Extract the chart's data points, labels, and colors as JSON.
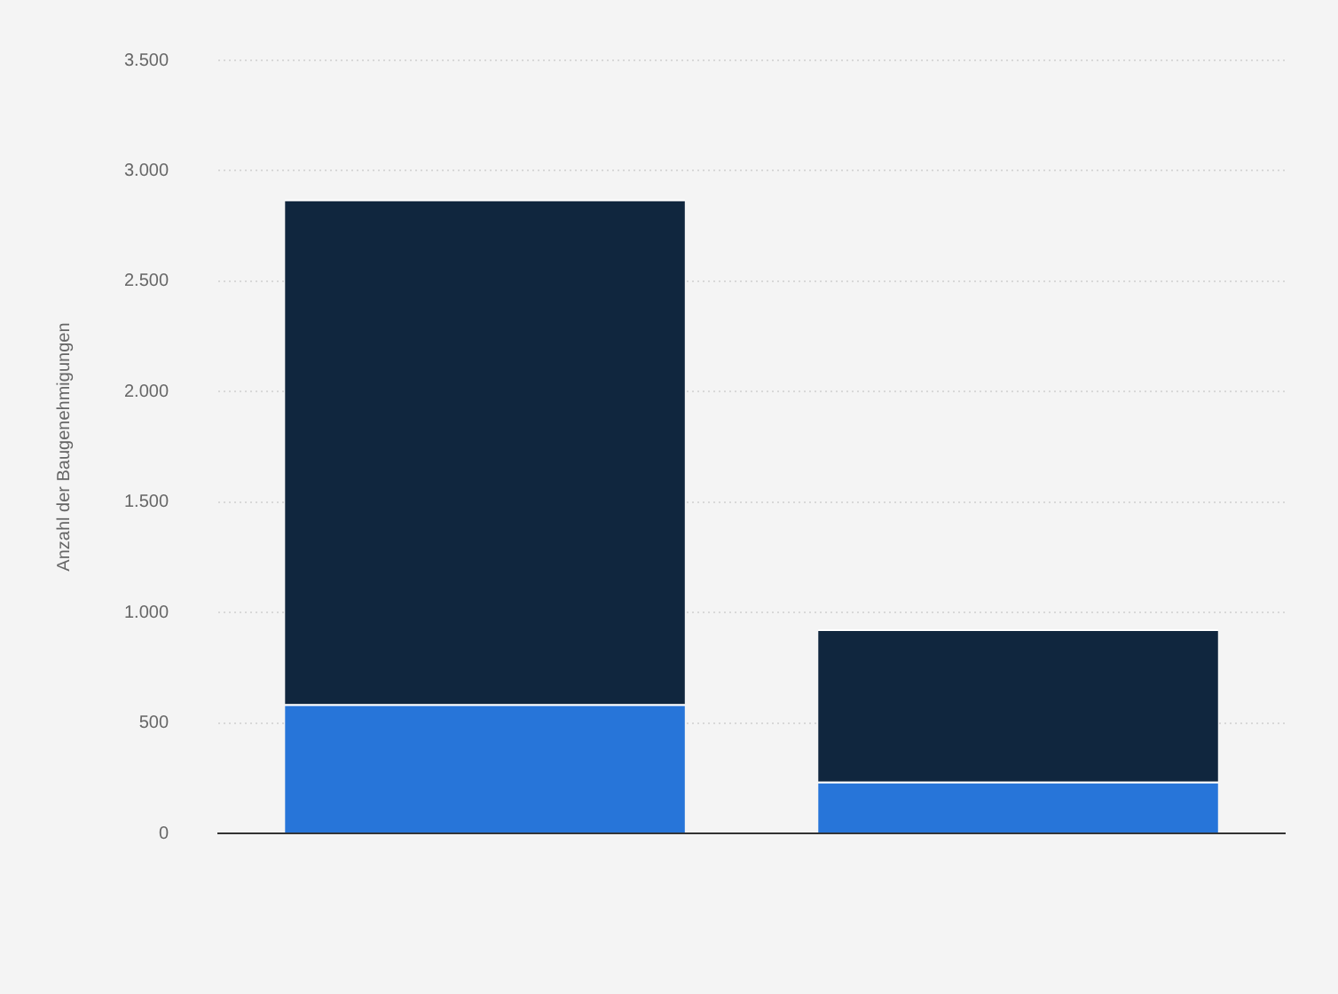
{
  "chart_data": {
    "type": "bar",
    "ylabel": "Anzahl der Baugenehmigungen",
    "categories": [
      null,
      null
    ],
    "stacked": true,
    "series": [
      {
        "color": "#2775d9",
        "values": [
          585,
          235
        ]
      },
      {
        "color": "#10263e",
        "values": [
          2285,
          690
        ]
      }
    ],
    "ylim": [
      0,
      3500
    ],
    "yticks": [
      {
        "value": 0,
        "label": "0"
      },
      {
        "value": 500,
        "label": "500"
      },
      {
        "value": 1000,
        "label": "1.000"
      },
      {
        "value": 1500,
        "label": "1.500"
      },
      {
        "value": 2000,
        "label": "2.000"
      },
      {
        "value": 2500,
        "label": "2.500"
      },
      {
        "value": 3000,
        "label": "3.000"
      },
      {
        "value": 3500,
        "label": "3.500"
      }
    ],
    "grid": "y",
    "legend": false
  }
}
